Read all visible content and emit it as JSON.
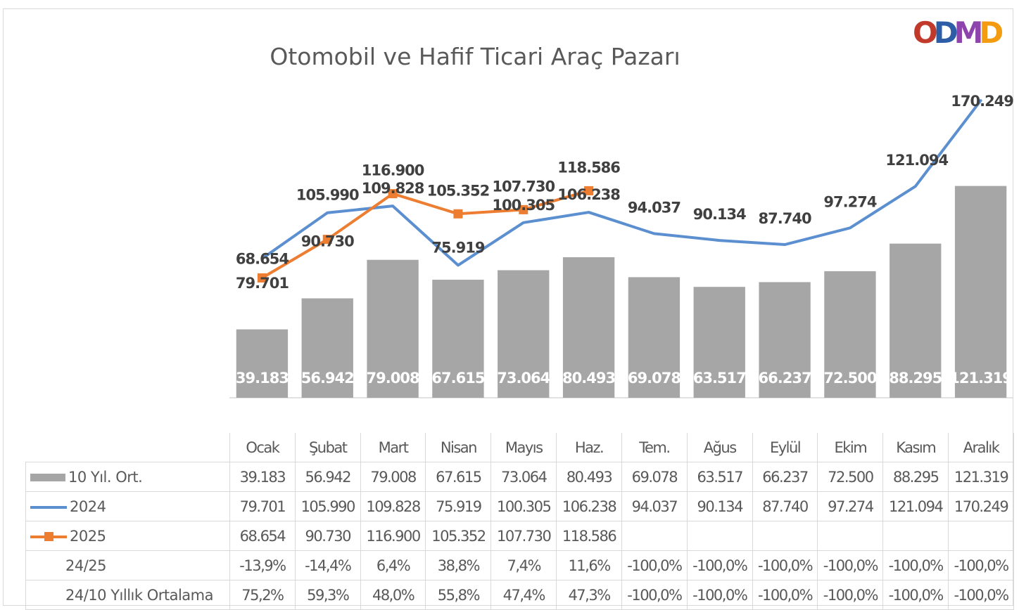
{
  "chart_data": {
    "type": "bar",
    "title": "Otomobil ve Hafif Ticari Araç Pazarı",
    "categories": [
      "Ocak",
      "Şubat",
      "Mart",
      "Nisan",
      "Mayıs",
      "Haz.",
      "Tem.",
      "Ağus",
      "Eylül",
      "Ekim",
      "Kasım",
      "Aralık"
    ],
    "ylim": [
      0,
      190000
    ],
    "grid": false,
    "legend": "table",
    "series": [
      {
        "name": "10 Yıl. Ort.",
        "type": "bar",
        "color": "#a6a6a6",
        "values": [
          39183,
          56942,
          79008,
          67615,
          73064,
          80493,
          69078,
          63517,
          66237,
          72500,
          88295,
          121319
        ],
        "labels": [
          "39.183",
          "56.942",
          "79.008",
          "67.615",
          "73.064",
          "80.493",
          "69.078",
          "63.517",
          "66.237",
          "72.500",
          "88.295",
          "121.319"
        ]
      },
      {
        "name": "2024",
        "type": "line",
        "color": "#5b8fd0",
        "values": [
          79701,
          105990,
          109828,
          75919,
          100305,
          106238,
          94037,
          90134,
          87740,
          97274,
          121094,
          170249
        ],
        "labels": [
          "79.701",
          "105.990",
          "109.828",
          "75.919",
          "100.305",
          "106.238",
          "94.037",
          "90.134",
          "87.740",
          "97.274",
          "121.094",
          "170.249"
        ]
      },
      {
        "name": "2025",
        "type": "line",
        "marker": "square",
        "color": "#ed7d31",
        "values": [
          68654,
          90730,
          116900,
          105352,
          107730,
          118586,
          null,
          null,
          null,
          null,
          null,
          null
        ],
        "labels": [
          "68.654",
          "90.730",
          "116.900",
          "105.352",
          "107.730",
          "118.586",
          "",
          "",
          "",
          "",
          "",
          ""
        ]
      }
    ]
  },
  "table": {
    "header": [
      "Ocak",
      "Şubat",
      "Mart",
      "Nisan",
      "Mayıs",
      "Haz.",
      "Tem.",
      "Ağus",
      "Eylül",
      "Ekim",
      "Kasım",
      "Aralık"
    ],
    "rows": [
      {
        "label": "10 Yıl. Ort.",
        "key": "bar",
        "cells": [
          "39.183",
          "56.942",
          "79.008",
          "67.615",
          "73.064",
          "80.493",
          "69.078",
          "63.517",
          "66.237",
          "72.500",
          "88.295",
          "121.319"
        ]
      },
      {
        "label": "2024",
        "key": "line-blue",
        "cells": [
          "79.701",
          "105.990",
          "109.828",
          "75.919",
          "100.305",
          "106.238",
          "94.037",
          "90.134",
          "87.740",
          "97.274",
          "121.094",
          "170.249"
        ]
      },
      {
        "label": "2025",
        "key": "line-orange",
        "cells": [
          "68.654",
          "90.730",
          "116.900",
          "105.352",
          "107.730",
          "118.586",
          "",
          "",
          "",
          "",
          "",
          ""
        ]
      },
      {
        "label": "24/25",
        "key": "none",
        "cells": [
          "-13,9%",
          "-14,4%",
          "6,4%",
          "38,8%",
          "7,4%",
          "11,6%",
          "-100,0%",
          "-100,0%",
          "-100,0%",
          "-100,0%",
          "-100,0%",
          "-100,0%"
        ]
      },
      {
        "label": "24/10 Yıllık Ortalama",
        "key": "none",
        "cells": [
          "75,2%",
          "59,3%",
          "48,0%",
          "55,8%",
          "47,4%",
          "47,3%",
          "-100,0%",
          "-100,0%",
          "-100,0%",
          "-100,0%",
          "-100,0%",
          "-100,0%"
        ]
      }
    ]
  },
  "logo": {
    "text": "ODMD",
    "letters": [
      "O",
      "D",
      "M",
      "D"
    ],
    "colors": [
      "#c0392b",
      "#2e5da8",
      "#8e44ad",
      "#f39c12"
    ]
  }
}
